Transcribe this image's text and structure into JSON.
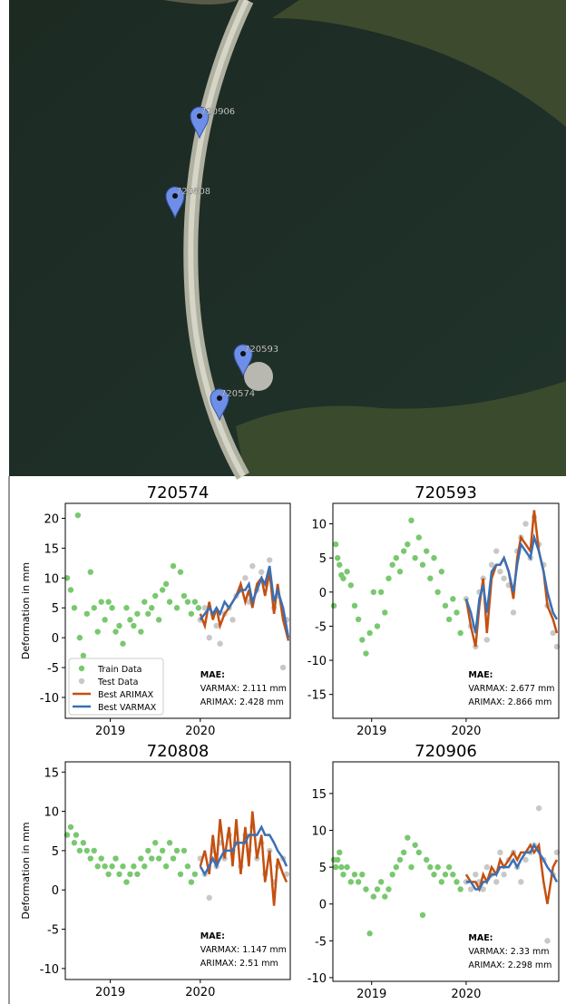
{
  "map": {
    "markers": [
      {
        "label": "720906"
      },
      {
        "label": "720808"
      },
      {
        "label": "720593"
      },
      {
        "label": "720574"
      }
    ]
  },
  "chart_data": [
    {
      "type": "scatter-line",
      "title": "720574",
      "ylabel": "Deformation in mm",
      "xlim": [
        2018.5,
        2021.0
      ],
      "ylim": [
        -13.5,
        22.5
      ],
      "xticks": [
        2019,
        2020
      ],
      "yticks": [
        -10,
        -5,
        0,
        5,
        10,
        15,
        20
      ],
      "legend": "lower left",
      "annotations": [
        "MAE:",
        "VARMAX: 2.111 mm",
        "ARIMAX: 2.428 mm"
      ],
      "series": [
        {
          "name": "Train Data",
          "kind": "scatter",
          "color": "#79c86f",
          "x": [
            2018.52,
            2018.56,
            2018.6,
            2018.64,
            2018.66,
            2018.7,
            2018.74,
            2018.78,
            2018.82,
            2018.86,
            2018.9,
            2018.94,
            2018.98,
            2019.02,
            2019.06,
            2019.1,
            2019.14,
            2019.18,
            2019.22,
            2019.26,
            2019.3,
            2019.34,
            2019.38,
            2019.42,
            2019.46,
            2019.5,
            2019.54,
            2019.58,
            2019.62,
            2019.66,
            2019.7,
            2019.74,
            2019.78,
            2019.82,
            2019.86,
            2019.9,
            2019.94,
            2019.98
          ],
          "values": [
            10,
            8,
            5,
            20.5,
            0,
            -3,
            4,
            11,
            5,
            1,
            6,
            3,
            6,
            5,
            1,
            2,
            -1,
            5,
            3,
            2,
            4,
            1,
            6,
            4,
            5,
            7,
            3,
            8,
            9,
            6,
            12,
            5,
            11,
            7,
            6,
            4,
            6,
            5
          ]
        },
        {
          "name": "Test Data",
          "kind": "scatter",
          "color": "#c8c8c8",
          "x": [
            2020.0,
            2020.05,
            2020.1,
            2020.14,
            2020.18,
            2020.22,
            2020.27,
            2020.32,
            2020.36,
            2020.4,
            2020.45,
            2020.5,
            2020.54,
            2020.58,
            2020.63,
            2020.68,
            2020.72,
            2020.77,
            2020.82,
            2020.86,
            2020.92,
            2020.96
          ],
          "values": [
            3,
            5,
            0,
            4,
            2,
            -1,
            4,
            5,
            3,
            7,
            8,
            10,
            6,
            12,
            8,
            11,
            9,
            13,
            5,
            7,
            -5,
            3
          ]
        },
        {
          "name": "Best ARIMAX",
          "kind": "line",
          "color": "#c4500f",
          "x": [
            2020.0,
            2020.05,
            2020.1,
            2020.14,
            2020.18,
            2020.22,
            2020.27,
            2020.32,
            2020.36,
            2020.4,
            2020.45,
            2020.5,
            2020.54,
            2020.58,
            2020.63,
            2020.68,
            2020.72,
            2020.77,
            2020.82,
            2020.86,
            2020.92,
            2020.98
          ],
          "values": [
            4,
            2,
            6,
            3,
            5,
            2,
            4,
            5,
            6,
            7,
            9,
            6,
            8,
            5,
            9,
            10,
            7,
            11,
            4,
            9,
            3,
            -0.5
          ]
        },
        {
          "name": "Best VARMAX",
          "kind": "line",
          "color": "#3a6fb5",
          "x": [
            2020.0,
            2020.05,
            2020.1,
            2020.14,
            2020.18,
            2020.22,
            2020.27,
            2020.32,
            2020.36,
            2020.4,
            2020.45,
            2020.5,
            2020.54,
            2020.58,
            2020.63,
            2020.68,
            2020.72,
            2020.77,
            2020.82,
            2020.86,
            2020.92,
            2020.98
          ],
          "values": [
            3,
            4,
            5,
            4,
            5,
            4,
            6,
            5,
            6,
            7,
            8,
            8,
            9,
            6,
            8,
            10,
            9,
            12,
            6,
            8,
            5,
            0
          ]
        }
      ]
    },
    {
      "type": "scatter-line",
      "title": "720593",
      "xlim": [
        2018.59,
        2020.98
      ],
      "ylim": [
        -18.5,
        13
      ],
      "xticks": [
        2019,
        2020
      ],
      "yticks": [
        -15,
        -10,
        -5,
        0,
        5,
        10
      ],
      "legend": false,
      "annotations": [
        "MAE:",
        "VARMAX: 2.677 mm",
        "ARIMAX: 2.866 mm"
      ],
      "series": [
        {
          "name": "Train Data",
          "kind": "scatter",
          "color": "#79c86f",
          "x": [
            2018.6,
            2018.62,
            2018.64,
            2018.66,
            2018.68,
            2018.7,
            2018.74,
            2018.78,
            2018.82,
            2018.86,
            2018.9,
            2018.94,
            2018.98,
            2019.02,
            2019.06,
            2019.1,
            2019.14,
            2019.18,
            2019.22,
            2019.26,
            2019.3,
            2019.34,
            2019.38,
            2019.42,
            2019.46,
            2019.5,
            2019.54,
            2019.58,
            2019.62,
            2019.66,
            2019.7,
            2019.74,
            2019.78,
            2019.82,
            2019.86,
            2019.9,
            2019.94
          ],
          "values": [
            -2,
            7,
            5,
            4,
            2.5,
            2,
            3,
            1,
            -2,
            -4,
            -7,
            -9,
            -6,
            0,
            -5,
            0,
            -3,
            2,
            4,
            5,
            3,
            6,
            7,
            10.5,
            5,
            8,
            4,
            6,
            2,
            5,
            0,
            3,
            -2,
            -4,
            -1,
            -3,
            -6
          ]
        },
        {
          "name": "Test Data",
          "kind": "scatter",
          "color": "#c8c8c8",
          "x": [
            2020.0,
            2020.05,
            2020.1,
            2020.14,
            2020.18,
            2020.22,
            2020.27,
            2020.32,
            2020.36,
            2020.4,
            2020.45,
            2020.5,
            2020.54,
            2020.58,
            2020.63,
            2020.68,
            2020.72,
            2020.77,
            2020.82,
            2020.86,
            2020.92,
            2020.96
          ],
          "values": [
            -1,
            -5,
            -8,
            0,
            2,
            -7,
            4,
            6,
            3,
            2,
            1,
            -3,
            6,
            8,
            10,
            5,
            11,
            7,
            4,
            -2,
            -6,
            -8
          ]
        },
        {
          "name": "Best ARIMAX",
          "kind": "line",
          "color": "#c4500f",
          "x": [
            2020.0,
            2020.05,
            2020.1,
            2020.14,
            2020.18,
            2020.22,
            2020.27,
            2020.32,
            2020.36,
            2020.4,
            2020.45,
            2020.5,
            2020.54,
            2020.58,
            2020.63,
            2020.68,
            2020.72,
            2020.77,
            2020.82,
            2020.86,
            2020.92,
            2020.96
          ],
          "values": [
            -1,
            -5,
            -8,
            -2,
            2,
            -6,
            2,
            4,
            4,
            5,
            3,
            -1,
            5,
            8,
            7,
            6,
            12,
            6,
            3,
            -2,
            -4,
            -6
          ]
        },
        {
          "name": "Best VARMAX",
          "kind": "line",
          "color": "#3a6fb5",
          "x": [
            2020.0,
            2020.05,
            2020.1,
            2020.14,
            2020.18,
            2020.22,
            2020.27,
            2020.32,
            2020.36,
            2020.4,
            2020.45,
            2020.5,
            2020.54,
            2020.58,
            2020.63,
            2020.68,
            2020.72,
            2020.77,
            2020.82,
            2020.86,
            2020.92,
            2020.96
          ],
          "values": [
            -1,
            -3,
            -6,
            -1,
            1,
            -3,
            3,
            4,
            4,
            5,
            3,
            0,
            4,
            7,
            6,
            5,
            8,
            6,
            3,
            0,
            -3,
            -4
          ]
        }
      ]
    },
    {
      "type": "scatter-line",
      "title": "720808",
      "ylabel": "Deformation in mm",
      "xlim": [
        2018.5,
        2021.0
      ],
      "ylim": [
        -11.4,
        16.3
      ],
      "xticks": [
        2019,
        2020
      ],
      "yticks": [
        -10,
        -5,
        0,
        5,
        10,
        15
      ],
      "legend": false,
      "annotations": [
        "MAE:",
        "VARMAX: 1.147 mm",
        "ARIMAX: 2.51 mm"
      ],
      "series": [
        {
          "name": "Train Data",
          "kind": "scatter",
          "color": "#79c86f",
          "x": [
            2018.52,
            2018.56,
            2018.6,
            2018.62,
            2018.66,
            2018.7,
            2018.74,
            2018.78,
            2018.82,
            2018.86,
            2018.9,
            2018.94,
            2018.98,
            2019.02,
            2019.06,
            2019.1,
            2019.14,
            2019.18,
            2019.22,
            2019.26,
            2019.3,
            2019.34,
            2019.38,
            2019.42,
            2019.46,
            2019.5,
            2019.54,
            2019.58,
            2019.62,
            2019.66,
            2019.7,
            2019.74,
            2019.78,
            2019.82,
            2019.86,
            2019.9,
            2019.94
          ],
          "values": [
            7,
            8,
            6,
            7,
            5,
            6,
            5,
            4,
            5,
            3,
            4,
            3,
            2,
            3,
            4,
            2,
            3,
            1,
            2,
            3,
            2,
            4,
            3,
            5,
            4,
            6,
            4,
            5,
            3,
            6,
            4,
            5,
            2,
            5,
            3,
            1,
            2
          ]
        },
        {
          "name": "Test Data",
          "kind": "scatter",
          "color": "#c8c8c8",
          "x": [
            2020.0,
            2020.05,
            2020.1,
            2020.14,
            2020.18,
            2020.22,
            2020.27,
            2020.32,
            2020.36,
            2020.4,
            2020.45,
            2020.5,
            2020.54,
            2020.58,
            2020.63,
            2020.68,
            2020.72,
            2020.77,
            2020.82,
            2020.86,
            2020.92,
            2020.96
          ],
          "values": [
            4,
            2,
            -1,
            5,
            3,
            6,
            4,
            7,
            5,
            6,
            3,
            7,
            5,
            8,
            4,
            6,
            2,
            5,
            1,
            3,
            4,
            2
          ]
        },
        {
          "name": "Best ARIMAX",
          "kind": "line",
          "color": "#c4500f",
          "x": [
            2020.0,
            2020.05,
            2020.1,
            2020.14,
            2020.18,
            2020.22,
            2020.27,
            2020.32,
            2020.36,
            2020.4,
            2020.45,
            2020.5,
            2020.54,
            2020.58,
            2020.63,
            2020.68,
            2020.72,
            2020.77,
            2020.82,
            2020.86,
            2020.92,
            2020.96
          ],
          "values": [
            3,
            5,
            2,
            7,
            3,
            9,
            4,
            8,
            3,
            9,
            2,
            8,
            3,
            10,
            4,
            7,
            1,
            5,
            -2,
            4,
            2,
            1
          ]
        },
        {
          "name": "Best VARMAX",
          "kind": "line",
          "color": "#3a6fb5",
          "x": [
            2020.0,
            2020.05,
            2020.1,
            2020.14,
            2020.18,
            2020.22,
            2020.27,
            2020.32,
            2020.36,
            2020.4,
            2020.45,
            2020.5,
            2020.54,
            2020.58,
            2020.63,
            2020.68,
            2020.72,
            2020.77,
            2020.82,
            2020.86,
            2020.92,
            2020.96
          ],
          "values": [
            3,
            2,
            3,
            4,
            3,
            4,
            5,
            5,
            5,
            6,
            6,
            6,
            7,
            7,
            7,
            8,
            7,
            7,
            6,
            5,
            4,
            3
          ]
        }
      ]
    },
    {
      "type": "scatter-line",
      "title": "720906",
      "xlim": [
        2018.59,
        2020.98
      ],
      "ylim": [
        -10.5,
        19.3
      ],
      "xticks": [
        2019,
        2020
      ],
      "yticks": [
        -10,
        -5,
        0,
        5,
        10,
        15
      ],
      "legend": false,
      "annotations": [
        "MAE:",
        "VARMAX: 2.33 mm",
        "ARIMAX: 2.298 mm"
      ],
      "series": [
        {
          "name": "Train Data",
          "kind": "scatter",
          "color": "#79c86f",
          "x": [
            2018.6,
            2018.62,
            2018.64,
            2018.66,
            2018.68,
            2018.7,
            2018.74,
            2018.78,
            2018.82,
            2018.86,
            2018.9,
            2018.94,
            2018.98,
            2019.02,
            2019.06,
            2019.1,
            2019.14,
            2019.18,
            2019.22,
            2019.26,
            2019.3,
            2019.34,
            2019.38,
            2019.42,
            2019.46,
            2019.5,
            2019.54,
            2019.58,
            2019.62,
            2019.66,
            2019.7,
            2019.74,
            2019.78,
            2019.82,
            2019.86,
            2019.9,
            2019.94
          ],
          "values": [
            6,
            5,
            6,
            7,
            5,
            4,
            5,
            3,
            4,
            3,
            4,
            2,
            -4,
            1,
            2,
            3,
            1,
            2,
            4,
            5,
            6,
            7,
            9,
            5,
            8,
            7,
            -1.5,
            6,
            5,
            4,
            5,
            3,
            4,
            5,
            4,
            3,
            2
          ]
        },
        {
          "name": "Test Data",
          "kind": "scatter",
          "color": "#c8c8c8",
          "x": [
            2020.0,
            2020.05,
            2020.1,
            2020.14,
            2020.18,
            2020.22,
            2020.27,
            2020.32,
            2020.36,
            2020.4,
            2020.45,
            2020.5,
            2020.54,
            2020.58,
            2020.63,
            2020.68,
            2020.72,
            2020.77,
            2020.82,
            2020.86,
            2020.92,
            2020.96
          ],
          "values": [
            3,
            2,
            4,
            3,
            2,
            5,
            4,
            3,
            7,
            4,
            6,
            7,
            5,
            3,
            6,
            7,
            8,
            13,
            6,
            -5,
            4,
            7
          ]
        },
        {
          "name": "Best ARIMAX",
          "kind": "line",
          "color": "#c4500f",
          "x": [
            2020.0,
            2020.05,
            2020.1,
            2020.14,
            2020.18,
            2020.22,
            2020.27,
            2020.32,
            2020.36,
            2020.4,
            2020.45,
            2020.5,
            2020.54,
            2020.58,
            2020.63,
            2020.68,
            2020.72,
            2020.77,
            2020.82,
            2020.86,
            2020.92,
            2020.96
          ],
          "values": [
            4,
            3,
            3,
            2,
            4,
            3,
            5,
            4,
            6,
            5,
            6,
            7,
            6,
            7,
            7,
            8,
            7,
            8,
            3,
            0,
            5,
            6
          ]
        },
        {
          "name": "Best VARMAX",
          "kind": "line",
          "color": "#3a6fb5",
          "x": [
            2020.0,
            2020.05,
            2020.1,
            2020.14,
            2020.18,
            2020.22,
            2020.27,
            2020.32,
            2020.36,
            2020.4,
            2020.45,
            2020.5,
            2020.54,
            2020.58,
            2020.63,
            2020.68,
            2020.72,
            2020.77,
            2020.82,
            2020.86,
            2020.92,
            2020.96
          ],
          "values": [
            3,
            3,
            2,
            2,
            3,
            3,
            4,
            4,
            5,
            5,
            5,
            6,
            5,
            6,
            7,
            7,
            8,
            7,
            6,
            5,
            4,
            3
          ]
        }
      ]
    }
  ]
}
